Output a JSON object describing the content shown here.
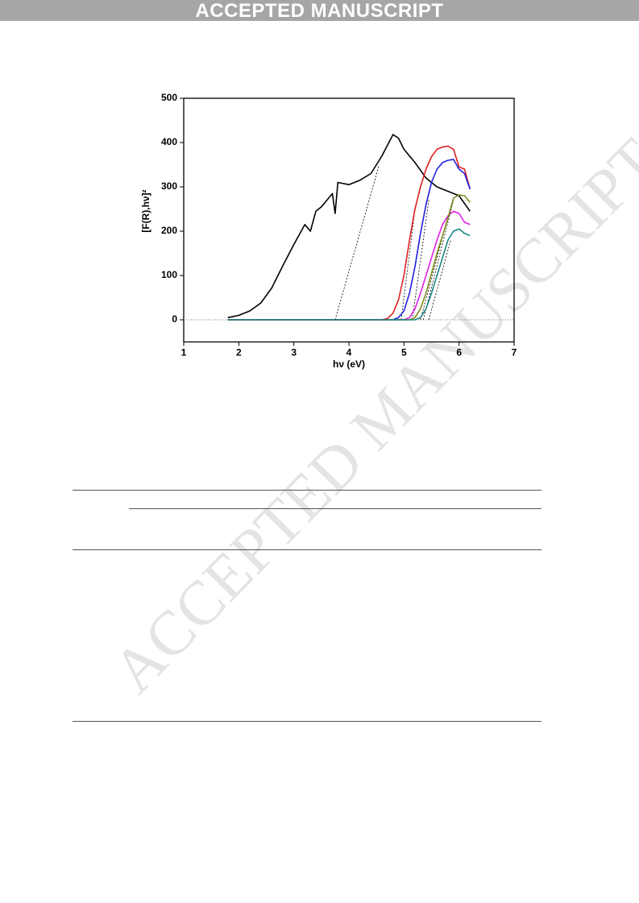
{
  "header": {
    "title": "ACCEPTED MANUSCRIPT"
  },
  "watermark": "ACCEPTED MANUSCRIPT",
  "chart_data": {
    "type": "line",
    "x_label": "hν (eV)",
    "y_label": "[F(R),hν]²",
    "xlim": [
      1,
      7
    ],
    "xticks": [
      1,
      2,
      3,
      4,
      5,
      6,
      7
    ],
    "ylim": [
      -50,
      500
    ],
    "yticks": [
      0,
      100,
      200,
      300,
      400,
      500
    ],
    "zero_line": true,
    "series": [
      {
        "color": "#000000",
        "x": [
          1.8,
          2.0,
          2.2,
          2.4,
          2.6,
          2.8,
          3.0,
          3.2,
          3.3,
          3.4,
          3.5,
          3.6,
          3.7,
          3.75,
          3.8,
          4.0,
          4.2,
          4.4,
          4.6,
          4.8,
          4.9,
          5.0,
          5.2,
          5.4,
          5.6,
          5.8,
          6.0,
          6.2
        ],
        "values": [
          5,
          10,
          20,
          38,
          72,
          122,
          170,
          215,
          200,
          245,
          255,
          270,
          285,
          240,
          310,
          305,
          315,
          330,
          370,
          418,
          410,
          385,
          355,
          320,
          300,
          290,
          280,
          245
        ]
      },
      {
        "color": "#e02020",
        "x": [
          1.8,
          4.6,
          4.7,
          4.8,
          4.9,
          5.0,
          5.1,
          5.2,
          5.3,
          5.4,
          5.5,
          5.6,
          5.7,
          5.8,
          5.9,
          6.0,
          6.1,
          6.2
        ],
        "values": [
          0,
          0,
          3,
          15,
          45,
          100,
          180,
          250,
          300,
          340,
          368,
          385,
          390,
          392,
          385,
          345,
          340,
          295
        ]
      },
      {
        "color": "#2020e0",
        "x": [
          1.8,
          4.8,
          4.9,
          5.0,
          5.1,
          5.2,
          5.3,
          5.4,
          5.5,
          5.6,
          5.7,
          5.8,
          5.9,
          6.0,
          6.1,
          6.2
        ],
        "values": [
          0,
          0,
          5,
          20,
          60,
          120,
          195,
          260,
          310,
          340,
          355,
          360,
          362,
          340,
          330,
          295
        ]
      },
      {
        "color": "#e020e0",
        "x": [
          1.8,
          5.0,
          5.1,
          5.2,
          5.3,
          5.4,
          5.5,
          5.6,
          5.7,
          5.8,
          5.9,
          6.0,
          6.1,
          6.2
        ],
        "values": [
          0,
          0,
          5,
          25,
          60,
          100,
          140,
          180,
          215,
          235,
          245,
          240,
          220,
          215
        ]
      },
      {
        "color": "#7f8c1a",
        "x": [
          1.8,
          5.1,
          5.2,
          5.3,
          5.4,
          5.5,
          5.6,
          5.7,
          5.8,
          5.9,
          6.0,
          6.1,
          6.2
        ],
        "values": [
          0,
          0,
          5,
          25,
          60,
          105,
          150,
          190,
          230,
          275,
          282,
          280,
          265
        ]
      },
      {
        "color": "#1a8585",
        "x": [
          1.8,
          5.2,
          5.3,
          5.4,
          5.5,
          5.6,
          5.7,
          5.8,
          5.9,
          6.0,
          6.1,
          6.2
        ],
        "values": [
          0,
          0,
          5,
          25,
          60,
          100,
          140,
          180,
          200,
          205,
          195,
          190
        ]
      }
    ],
    "tangent_lines": [
      {
        "x": [
          3.75,
          4.55
        ],
        "values": [
          0,
          350
        ]
      },
      {
        "x": [
          4.95,
          5.2
        ],
        "values": [
          0,
          250
        ]
      },
      {
        "x": [
          5.15,
          5.45
        ],
        "values": [
          0,
          270
        ]
      },
      {
        "x": [
          5.3,
          5.75
        ],
        "values": [
          0,
          210
        ]
      },
      {
        "x": [
          5.35,
          5.9
        ],
        "values": [
          0,
          270
        ]
      },
      {
        "x": [
          5.45,
          5.85
        ],
        "values": [
          0,
          180
        ]
      }
    ]
  }
}
